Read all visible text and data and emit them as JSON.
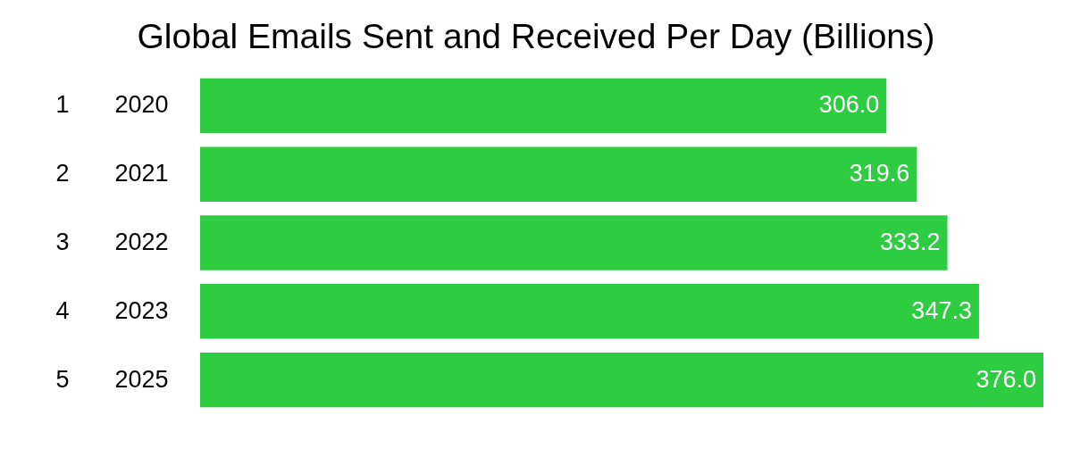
{
  "chart_data": {
    "type": "bar",
    "orientation": "horizontal",
    "title": "Global Emails Sent and Received Per Day (Billions)",
    "categories": [
      "2020",
      "2021",
      "2022",
      "2023",
      "2025"
    ],
    "values": [
      306.0,
      319.6,
      333.2,
      347.3,
      376.0
    ],
    "value_labels": [
      "306.0",
      "319.6",
      "333.2",
      "347.3",
      "376.0"
    ],
    "color": "#2ecc40",
    "annotations": [
      "1",
      "2",
      "3",
      "4",
      "5"
    ],
    "tick_labels": "y",
    "grid": false
  }
}
